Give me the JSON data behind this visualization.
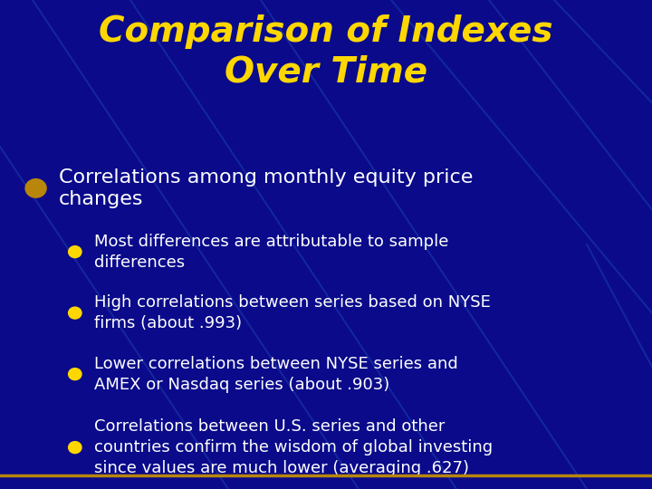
{
  "title_line1": "Comparison of Indexes",
  "title_line2": "Over Time",
  "title_color": "#FFD700",
  "title_fontsize": 28,
  "bg_color": "#0A0A8B",
  "main_bullet_text": "Correlations among monthly equity price\nchanges",
  "main_bullet_color": "#FFFFFF",
  "main_bullet_fontsize": 16,
  "main_bullet_marker_color": "#B8860B",
  "sub_bullets": [
    "Most differences are attributable to sample\ndifferences",
    "High correlations between series based on NYSE\nfirms (about .993)",
    "Lower correlations between NYSE series and\nAMEX or Nasdaq series (about .903)",
    "Correlations between U.S. series and other\ncountries confirm the wisdom of global investing\nsince values are much lower (averaging .627)"
  ],
  "sub_bullet_color": "#FFFFFF",
  "sub_bullet_fontsize": 13,
  "sub_bullet_marker_color": "#FFD700",
  "footer_color": "#B8860B",
  "bg_lines": [
    {
      "x": [
        0.05,
        0.55
      ],
      "y": [
        1.0,
        0.0
      ]
    },
    {
      "x": [
        0.2,
        0.7
      ],
      "y": [
        1.0,
        0.0
      ]
    },
    {
      "x": [
        0.4,
        0.9
      ],
      "y": [
        1.0,
        0.0
      ]
    },
    {
      "x": [
        0.6,
        1.1
      ],
      "y": [
        1.0,
        0.2
      ]
    },
    {
      "x": [
        0.75,
        1.1
      ],
      "y": [
        1.0,
        0.4
      ]
    },
    {
      "x": [
        -0.05,
        0.35
      ],
      "y": [
        0.8,
        0.0
      ]
    },
    {
      "x": [
        0.85,
        1.1
      ],
      "y": [
        1.0,
        0.65
      ]
    },
    {
      "x": [
        0.9,
        1.1
      ],
      "y": [
        0.5,
        0.0
      ]
    }
  ],
  "bg_line_color": "#1A3AAA",
  "bg_line_alpha": 0.6
}
